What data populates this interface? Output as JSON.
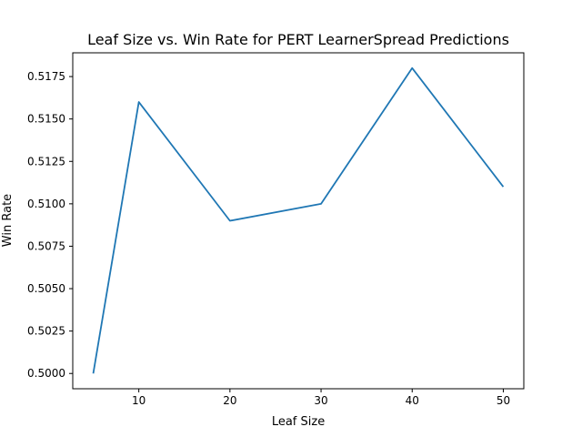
{
  "chart_data": {
    "type": "line",
    "title": "Leaf Size vs. Win Rate for PERT LearnerSpread Predictions",
    "xlabel": "Leaf Size",
    "ylabel": "Win Rate",
    "x": [
      5,
      10,
      20,
      30,
      40,
      50
    ],
    "series": [
      {
        "values": [
          0.5,
          0.516,
          0.509,
          0.51,
          0.518,
          0.511
        ],
        "color": "#1f77b4"
      }
    ],
    "xticks": [
      "10",
      "20",
      "30",
      "40",
      "50"
    ],
    "yticks": [
      "0.5000",
      "0.5025",
      "0.5050",
      "0.5075",
      "0.5100",
      "0.5125",
      "0.5150",
      "0.5175"
    ],
    "xlim": [
      2.75,
      52.25
    ],
    "ylim": [
      0.4991,
      0.5189
    ],
    "grid": false,
    "legend": "none"
  }
}
